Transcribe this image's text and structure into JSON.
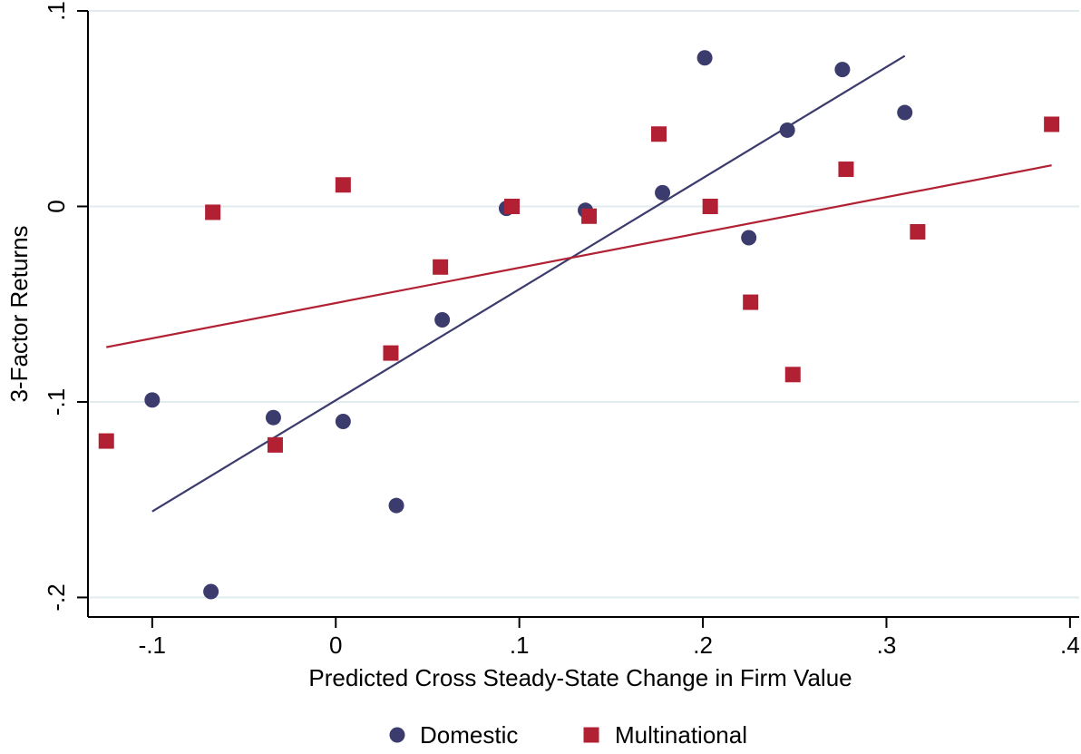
{
  "chart_data": {
    "type": "scatter",
    "title": "",
    "xlabel": "Predicted Cross Steady-State Change in Firm Value",
    "ylabel": "3-Factor Returns",
    "xlim": [
      -0.135,
      0.405
    ],
    "ylim": [
      -0.21,
      0.1
    ],
    "x_ticks": [
      {
        "value": -0.1,
        "label": "-.1"
      },
      {
        "value": 0.0,
        "label": "0"
      },
      {
        "value": 0.1,
        "label": ".1"
      },
      {
        "value": 0.2,
        "label": ".2"
      },
      {
        "value": 0.3,
        "label": ".3"
      },
      {
        "value": 0.4,
        "label": ".4"
      }
    ],
    "y_ticks": [
      {
        "value": -0.2,
        "label": "-.2"
      },
      {
        "value": -0.1,
        "label": "-.1"
      },
      {
        "value": 0.0,
        "label": "0"
      },
      {
        "value": 0.1,
        "label": ".1"
      }
    ],
    "grid": "horizontal",
    "legend_position": "bottom",
    "series": [
      {
        "name": "Domestic",
        "marker": "circle",
        "color": "#3b3b6e",
        "points": [
          {
            "x": -0.1,
            "y": -0.099
          },
          {
            "x": -0.068,
            "y": -0.197
          },
          {
            "x": -0.034,
            "y": -0.108
          },
          {
            "x": 0.004,
            "y": -0.11
          },
          {
            "x": 0.033,
            "y": -0.153
          },
          {
            "x": 0.058,
            "y": -0.058
          },
          {
            "x": 0.093,
            "y": -0.001
          },
          {
            "x": 0.136,
            "y": -0.002
          },
          {
            "x": 0.178,
            "y": 0.007
          },
          {
            "x": 0.201,
            "y": 0.076
          },
          {
            "x": 0.225,
            "y": -0.016
          },
          {
            "x": 0.246,
            "y": 0.039
          },
          {
            "x": 0.276,
            "y": 0.07
          },
          {
            "x": 0.31,
            "y": 0.048
          }
        ],
        "fit_line": {
          "x": [
            -0.1,
            0.31
          ],
          "y": [
            -0.156,
            0.077
          ]
        }
      },
      {
        "name": "Multinational",
        "marker": "square",
        "color": "#b22034",
        "points": [
          {
            "x": -0.125,
            "y": -0.12
          },
          {
            "x": -0.067,
            "y": -0.003
          },
          {
            "x": -0.033,
            "y": -0.122
          },
          {
            "x": 0.004,
            "y": 0.011
          },
          {
            "x": 0.03,
            "y": -0.075
          },
          {
            "x": 0.057,
            "y": -0.031
          },
          {
            "x": 0.096,
            "y": 0.0
          },
          {
            "x": 0.138,
            "y": -0.005
          },
          {
            "x": 0.176,
            "y": 0.037
          },
          {
            "x": 0.204,
            "y": 0.0
          },
          {
            "x": 0.226,
            "y": -0.049
          },
          {
            "x": 0.249,
            "y": -0.086
          },
          {
            "x": 0.278,
            "y": 0.019
          },
          {
            "x": 0.317,
            "y": -0.013
          },
          {
            "x": 0.39,
            "y": 0.042
          }
        ],
        "fit_line": {
          "x": [
            -0.125,
            0.39
          ],
          "y": [
            -0.072,
            0.021
          ]
        }
      }
    ]
  }
}
